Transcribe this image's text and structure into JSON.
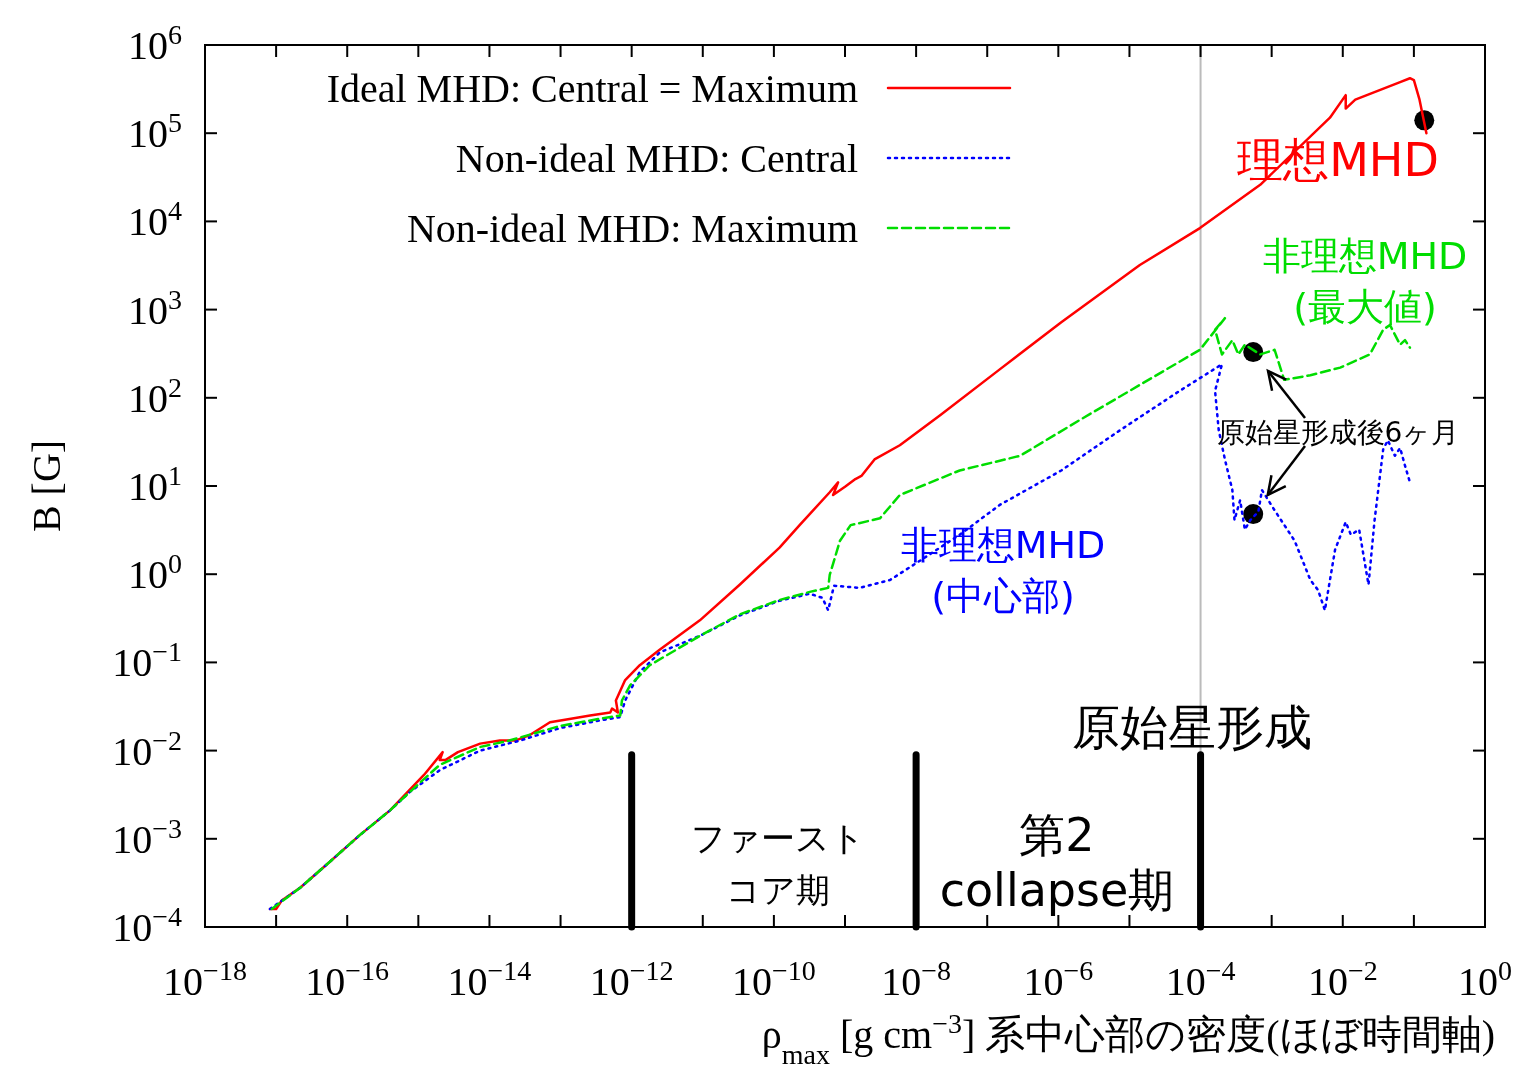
{
  "chart_data": {
    "type": "line",
    "xlabel": "ρ$_{max}$ [g cm$^{−3}$] 系中心部の密度(ほぼ時間軸)",
    "ylabel": "B [G]",
    "log": "xy",
    "grid": false,
    "legend": "top left",
    "xlim": [
      1e-18,
      1
    ],
    "ylim": [
      0.0001,
      1000000
    ],
    "xticks": [
      {
        "value": 1e-18,
        "label": "10$^{−18}$"
      },
      {
        "value": 1e-17,
        "label": null
      },
      {
        "value": 1e-16,
        "label": "10$^{−16}$"
      },
      {
        "value": 1e-15,
        "label": null
      },
      {
        "value": 1e-14,
        "label": "10$^{−14}$"
      },
      {
        "value": 1e-13,
        "label": null
      },
      {
        "value": 1e-12,
        "label": "10$^{−12}$"
      },
      {
        "value": 1e-11,
        "label": null
      },
      {
        "value": 1e-10,
        "label": "10$^{−10}$"
      },
      {
        "value": 1e-09,
        "label": null
      },
      {
        "value": 1e-08,
        "label": "10$^{−8}$"
      },
      {
        "value": 1e-07,
        "label": null
      },
      {
        "value": 1e-06,
        "label": "10$^{−6}$"
      },
      {
        "value": 1e-05,
        "label": null
      },
      {
        "value": 0.0001,
        "label": "10$^{−4}$"
      },
      {
        "value": 0.001,
        "label": null
      },
      {
        "value": 0.01,
        "label": "10$^{−2}$"
      },
      {
        "value": 0.1,
        "label": null
      },
      {
        "value": 1,
        "label": "10$^{0}$"
      }
    ],
    "yticks": [
      {
        "value": 0.0001,
        "label": "10$^{−4}$"
      },
      {
        "value": 0.001,
        "label": "10$^{−3}$"
      },
      {
        "value": 0.01,
        "label": "10$^{−2}$"
      },
      {
        "value": 0.1,
        "label": "10$^{−1}$"
      },
      {
        "value": 1,
        "label": "10$^{0}$"
      },
      {
        "value": 10,
        "label": "10$^{1}$"
      },
      {
        "value": 100,
        "label": "10$^{2}$"
      },
      {
        "value": 1000,
        "label": "10$^{3}$"
      },
      {
        "value": 10000,
        "label": "10$^{4}$"
      },
      {
        "value": 100000,
        "label": "10$^{5}$"
      },
      {
        "value": 1000000,
        "label": "10$^{6}$"
      }
    ],
    "series": [
      {
        "name": "Ideal MHD: Central = Maximum",
        "color": "#ff0000",
        "line_style": "solid",
        "x": [
          8.2e-18,
          1e-17,
          1.2e-17,
          2.2e-17,
          5.7e-17,
          1.5e-16,
          4e-16,
          7.6e-16,
          1.2e-15,
          2.2e-15,
          2e-15,
          2.4e-15,
          3.6e-15,
          7.4e-15,
          1.4e-14,
          2.3e-14,
          3.7e-14,
          7.1e-14,
          1.4e-13,
          2.6e-13,
          5e-13,
          5.3e-13,
          6.4e-13,
          6e-13,
          8.1e-13,
          1.3e-12,
          2.5e-12,
          9.1e-12,
          3.3e-11,
          1.2e-10,
          2.3e-10,
          6.1e-10,
          8e-10,
          6.8e-10,
          1e-09,
          1.4e-09,
          1.7e-09,
          2.6e-09,
          5.9e-09,
          2.2e-08,
          1.5e-07,
          1.1e-06,
          1.4e-05,
          9.8e-05,
          0.00069,
          0.0066,
          0.011,
          0.011,
          0.015,
          0.064,
          0.088,
          0.1,
          0.12,
          0.15
        ],
        "values": [
          0.00016,
          0.00016,
          0.0002,
          0.00028,
          0.00055,
          0.0011,
          0.0021,
          0.0036,
          0.0053,
          0.0096,
          0.0078,
          0.0078,
          0.0096,
          0.012,
          0.013,
          0.013,
          0.015,
          0.021,
          0.023,
          0.025,
          0.027,
          0.03,
          0.027,
          0.037,
          0.063,
          0.093,
          0.14,
          0.3,
          0.76,
          2.0,
          3.6,
          8.5,
          11,
          7.9,
          9.8,
          12,
          13,
          20,
          29,
          64,
          210,
          720,
          3200,
          8400,
          26000,
          150000,
          270000,
          190000,
          240000,
          380000,
          420000,
          400000,
          240000,
          100000
        ]
      },
      {
        "name": "Non-ideal MHD: Central",
        "color": "#0000ff",
        "line_style": "dotted",
        "x": [
          8.2e-18,
          2.2e-17,
          5.7e-17,
          1.5e-16,
          4e-16,
          7.6e-16,
          2e-15,
          7.4e-15,
          2.7e-14,
          9.8e-14,
          3.6e-13,
          6.9e-13,
          8.1e-13,
          1.3e-12,
          2.5e-12,
          9.1e-12,
          3.3e-11,
          1.2e-10,
          3.2e-10,
          4.8e-10,
          5.8e-10,
          7e-10,
          1.6e-09,
          4.3e-09,
          1.1e-08,
          4.1e-08,
          1.5e-07,
          1.1e-06,
          7.4e-06,
          5.1e-05,
          0.0002,
          0.00016,
          0.00018,
          0.00022,
          0.00028,
          0.0003,
          0.00036,
          0.00042,
          0.0005,
          0.00065,
          0.00073,
          0.0011,
          0.0021,
          0.0035,
          0.0045,
          0.0056,
          0.0078,
          0.011,
          0.013,
          0.017,
          0.023,
          0.028,
          0.037,
          0.043,
          0.054,
          0.064,
          0.075,
          0.088
        ],
        "values": [
          0.00016,
          0.00028,
          0.00055,
          0.0011,
          0.0021,
          0.0034,
          0.006,
          0.01,
          0.013,
          0.018,
          0.022,
          0.024,
          0.037,
          0.078,
          0.13,
          0.2,
          0.34,
          0.5,
          0.6,
          0.54,
          0.39,
          0.74,
          0.7,
          0.86,
          1.4,
          2.8,
          6.1,
          15,
          43,
          120,
          240,
          120,
          43,
          20,
          9.0,
          4.1,
          6.9,
          3.2,
          4.1,
          5.1,
          9.0,
          5.3,
          2.4,
          0.86,
          0.66,
          0.39,
          1.9,
          3.9,
          2.8,
          3.2,
          0.76,
          4.1,
          26,
          33,
          22,
          27,
          17,
          11
        ]
      },
      {
        "name": "Non-ideal MHD: Maximum",
        "color": "#00dd00",
        "line_style": "dashed",
        "x": [
          8.7e-18,
          2.2e-17,
          5.7e-17,
          1.5e-16,
          4e-16,
          7.6e-16,
          2e-15,
          7.4e-15,
          1.9e-14,
          9.8e-14,
          3.6e-13,
          6.9e-13,
          7.3e-13,
          9.5e-13,
          1.8e-12,
          9.1e-12,
          3.3e-11,
          1.2e-10,
          3.2e-10,
          5.8e-10,
          6.1e-10,
          8.5e-10,
          1.2e-09,
          3.1e-09,
          5.9e-09,
          4.1e-08,
          2.9e-07,
          2e-06,
          1.4e-05,
          9.8e-05,
          0.00022,
          0.00016,
          0.0002,
          0.00028,
          0.00034,
          0.00042,
          0.00069,
          0.0011,
          0.0015,
          0.0035,
          0.0092,
          0.024,
          0.037,
          0.046,
          0.064,
          0.075,
          0.088
        ],
        "values": [
          0.00016,
          0.00028,
          0.00055,
          0.0011,
          0.0021,
          0.0034,
          0.0069,
          0.011,
          0.013,
          0.019,
          0.023,
          0.025,
          0.037,
          0.055,
          0.093,
          0.2,
          0.35,
          0.51,
          0.63,
          0.7,
          0.98,
          2.4,
          3.6,
          4.3,
          7.9,
          15,
          22,
          56,
          140,
          350,
          800,
          590,
          310,
          450,
          310,
          400,
          310,
          350,
          160,
          180,
          220,
          310,
          590,
          670,
          400,
          450,
          370
        ]
      },
      {
        "type": "scatter",
        "color": "#000000",
        "marker": "circle",
        "x": [
          0.14,
          0.00055,
          0.00055
        ],
        "values": [
          140000,
          330,
          4.8
        ]
      },
      {
        "color": "#000000",
        "line_style": "solid",
        "x": [
          1e-12,
          1e-12
        ],
        "values": [
          0.009,
          0.0001
        ]
      },
      {
        "color": "#000000",
        "line_style": "solid",
        "x": [
          1e-08,
          1e-08
        ],
        "values": [
          0.009,
          0.0001
        ]
      },
      {
        "color": "#000000",
        "line_style": "solid",
        "x": [
          0.0001,
          0.0001
        ],
        "values": [
          0.009,
          0.0001
        ]
      }
    ],
    "ref_lines": [
      {
        "axis": "x",
        "value": 0.0001,
        "color": "#bbbbbb"
      }
    ],
    "annotations": [
      "理想MHD",
      "非理想MHD",
      "(最大値)",
      "非理想MHD",
      "(中心部)",
      {
        "text": "原始星形成後6ヶ月",
        "x": 0.00055,
        "y": 330
      },
      "原始星形成",
      "ファースト",
      "コア期",
      "第2",
      "collapse期"
    ]
  }
}
